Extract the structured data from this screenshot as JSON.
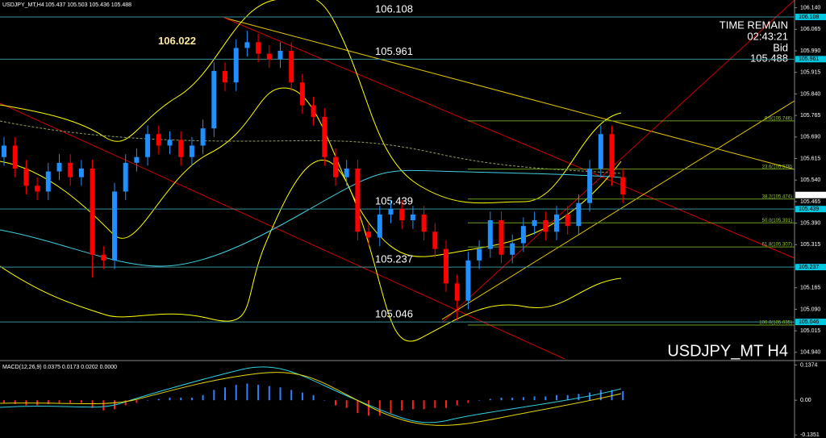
{
  "chart_data": {
    "type": "candlestick",
    "title": "USDJPY_MT,H4",
    "ohlc_text": "105.437 105.503 105.436 105.488",
    "symbol_label": "USDJPY_MT H4",
    "time_remain_label": "TIME REMAIN",
    "time_remain": "02:43:21",
    "bid_label": "Bid",
    "bid": 105.488,
    "high_label": 106.022,
    "up_color": "#1e90ff",
    "down_color": "#ff0000",
    "ylim": [
      104.917,
      106.167
    ],
    "yticks": [
      {
        "value": 106.14,
        "label": "106.140"
      },
      {
        "value": 106.065,
        "label": "106.065"
      },
      {
        "value": 105.99,
        "label": "105.990"
      },
      {
        "value": 105.915,
        "label": "105.915"
      },
      {
        "value": 105.84,
        "label": "105.840"
      },
      {
        "value": 105.765,
        "label": "105.765"
      },
      {
        "value": 105.69,
        "label": "105.690"
      },
      {
        "value": 105.615,
        "label": "105.615"
      },
      {
        "value": 105.54,
        "label": "105.540"
      },
      {
        "value": 105.465,
        "label": "105.465"
      },
      {
        "value": 105.39,
        "label": "105.390"
      },
      {
        "value": 105.315,
        "label": "105.315"
      },
      {
        "value": 105.24,
        "label": "105.240"
      },
      {
        "value": 105.165,
        "label": "105.165"
      },
      {
        "value": 105.09,
        "label": "105.090"
      },
      {
        "value": 105.015,
        "label": "105.015"
      },
      {
        "value": 104.94,
        "label": "104.940"
      }
    ],
    "levels": [
      106.108,
      105.961,
      105.439,
      105.237,
      105.046
    ],
    "fib": [
      {
        "value": 105.746,
        "label": "0.0(105.746)"
      },
      {
        "value": 105.578,
        "label": "23.6(105.578)"
      },
      {
        "value": 105.474,
        "label": "38.2(105.474)"
      },
      {
        "value": 105.391,
        "label": "50.0(105.391)"
      },
      {
        "value": 105.307,
        "label": "61.8(105.307)"
      },
      {
        "value": 105.035,
        "label": "100.0(105.035)"
      }
    ],
    "open": [
      105.62,
      105.66,
      105.58,
      105.52,
      105.5,
      105.57,
      105.6,
      105.55,
      105.58,
      105.28,
      105.26,
      105.5,
      105.6,
      105.62,
      105.7,
      105.66,
      105.68,
      105.62,
      105.66,
      105.72,
      105.92,
      105.88,
      106.0,
      106.02,
      105.98,
      105.96,
      105.99,
      105.88,
      105.8,
      105.76,
      105.62,
      105.55,
      105.58,
      105.36,
      105.34,
      105.42,
      105.44,
      105.4,
      105.42,
      105.36,
      105.3,
      105.18,
      105.12,
      105.26,
      105.3,
      105.4,
      105.28,
      105.32,
      105.38,
      105.4,
      105.36,
      105.42,
      105.38,
      105.46,
      105.58,
      105.7,
      105.55
    ],
    "high": [
      105.69,
      105.69,
      105.61,
      105.55,
      105.6,
      105.63,
      105.63,
      105.61,
      105.61,
      105.31,
      105.53,
      105.63,
      105.65,
      105.73,
      105.73,
      105.71,
      105.71,
      105.69,
      105.75,
      105.95,
      105.95,
      106.03,
      106.06,
      106.05,
      106.01,
      106.02,
      106.02,
      105.91,
      105.83,
      105.79,
      105.65,
      105.61,
      105.61,
      105.39,
      105.45,
      105.47,
      105.47,
      105.45,
      105.45,
      105.39,
      105.33,
      105.21,
      105.29,
      105.33,
      105.43,
      105.43,
      105.35,
      105.41,
      105.43,
      105.43,
      105.45,
      105.45,
      105.49,
      105.61,
      105.73,
      105.73,
      105.58
    ],
    "low": [
      105.59,
      105.55,
      105.49,
      105.47,
      105.47,
      105.54,
      105.52,
      105.52,
      105.2,
      105.23,
      105.23,
      105.47,
      105.57,
      105.59,
      105.63,
      105.63,
      105.59,
      105.59,
      105.63,
      105.69,
      105.85,
      105.85,
      105.97,
      105.95,
      105.93,
      105.93,
      105.85,
      105.77,
      105.73,
      105.59,
      105.52,
      105.52,
      105.33,
      105.31,
      105.31,
      105.39,
      105.37,
      105.37,
      105.33,
      105.27,
      105.15,
      105.05,
      105.09,
      105.23,
      105.27,
      105.25,
      105.25,
      105.29,
      105.35,
      105.33,
      105.33,
      105.35,
      105.35,
      105.43,
      105.55,
      105.52,
      105.46
    ],
    "close": [
      105.66,
      105.58,
      105.52,
      105.5,
      105.57,
      105.6,
      105.55,
      105.58,
      105.28,
      105.26,
      105.5,
      105.6,
      105.62,
      105.7,
      105.66,
      105.68,
      105.62,
      105.66,
      105.72,
      105.92,
      105.88,
      106.0,
      106.02,
      105.98,
      105.96,
      105.99,
      105.88,
      105.8,
      105.76,
      105.62,
      105.55,
      105.58,
      105.36,
      105.34,
      105.42,
      105.44,
      105.4,
      105.42,
      105.36,
      105.3,
      105.18,
      105.12,
      105.26,
      105.3,
      105.4,
      105.28,
      105.32,
      105.38,
      105.4,
      105.36,
      105.42,
      105.38,
      105.46,
      105.58,
      105.7,
      105.55,
      105.49
    ],
    "macd": {
      "title": "MACD(12,26,9) 0.0375 0.0173 0.0202 0.0000",
      "ylim": [
        -0.1471,
        0.1514
      ],
      "yticks": [
        {
          "value": 0.1374,
          "label": "0.1374"
        },
        {
          "value": 0,
          "label": "0.00"
        },
        {
          "value": -0.1351,
          "label": "-0.1351"
        }
      ],
      "histogram": [
        -0.01,
        -0.015,
        -0.02,
        -0.02,
        -0.015,
        -0.01,
        -0.01,
        -0.01,
        -0.03,
        -0.04,
        -0.035,
        -0.02,
        -0.01,
        0.0,
        0.005,
        0.01,
        0.01,
        0.01,
        0.02,
        0.04,
        0.05,
        0.06,
        0.065,
        0.06,
        0.055,
        0.05,
        0.04,
        0.03,
        0.02,
        0.0,
        -0.02,
        -0.03,
        -0.05,
        -0.06,
        -0.06,
        -0.05,
        -0.04,
        -0.035,
        -0.035,
        -0.03,
        -0.03,
        -0.02,
        -0.01,
        0.0,
        0.005,
        0.01,
        0.01,
        0.012,
        0.015,
        0.015,
        0.02,
        0.02,
        0.025,
        0.03,
        0.04,
        0.04,
        0.035
      ]
    }
  }
}
